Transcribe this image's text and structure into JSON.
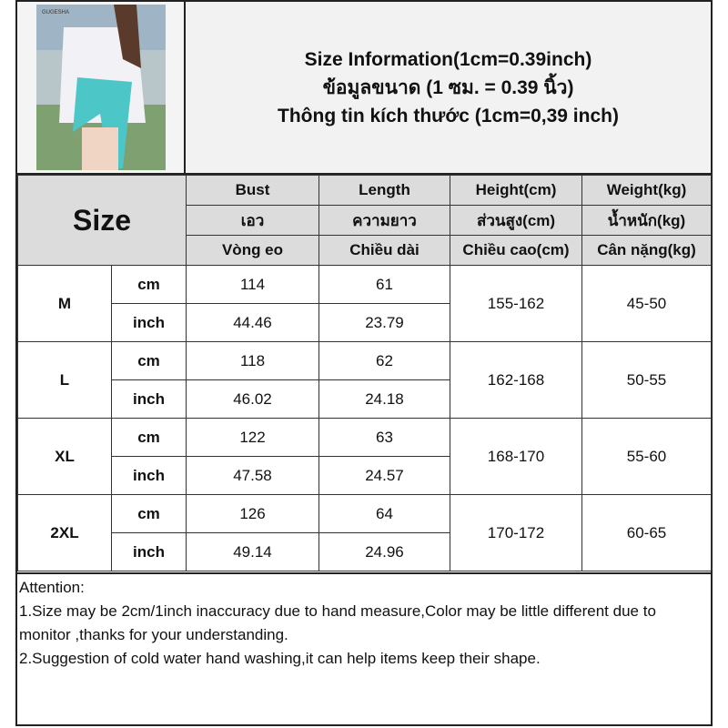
{
  "title": {
    "line1": "Size Information(1cm=0.39inch)",
    "line2": "ข้อมูลขนาด (1 ซม. = 0.39 นิ้ว)",
    "line3": "Thông tin kích thước (1cm=0,39 inch)"
  },
  "photo": {
    "brand": "GUGESHA"
  },
  "size_label": "Size",
  "headers": [
    [
      "Bust",
      "Length",
      "Height(cm)",
      "Weight(kg)"
    ],
    [
      "เอว",
      "ความยาว",
      "ส่วนสูง(cm)",
      "น้ำหนัก(kg)"
    ],
    [
      "Vòng eo",
      "Chiều dài",
      "Chiều cao(cm)",
      "Cân nặng(kg)"
    ]
  ],
  "units": {
    "cm": "cm",
    "inch": "inch"
  },
  "rows": [
    {
      "size": "M",
      "bust_cm": "114",
      "len_cm": "61",
      "bust_in": "44.46",
      "len_in": "23.79",
      "height": "155-162",
      "weight": "45-50"
    },
    {
      "size": "L",
      "bust_cm": "118",
      "len_cm": "62",
      "bust_in": "46.02",
      "len_in": "24.18",
      "height": "162-168",
      "weight": "50-55"
    },
    {
      "size": "XL",
      "bust_cm": "122",
      "len_cm": "63",
      "bust_in": "47.58",
      "len_in": "24.57",
      "height": "168-170",
      "weight": "55-60"
    },
    {
      "size": "2XL",
      "bust_cm": "126",
      "len_cm": "64",
      "bust_in": "49.14",
      "len_in": "24.96",
      "height": "170-172",
      "weight": "60-65"
    }
  ],
  "attention": {
    "heading": "Attention:",
    "line1": "1.Size may be 2cm/1inch inaccuracy due to hand measure,Color may be little different due to monitor ,thanks for your understanding.",
    "line2": "2.Suggestion of cold water hand washing,it can help items keep their shape."
  }
}
